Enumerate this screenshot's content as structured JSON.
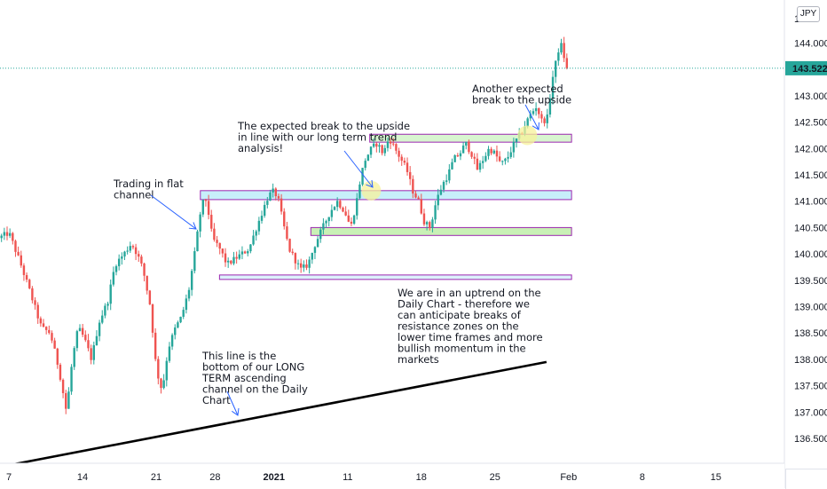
{
  "chart_data": {
    "type": "candlestick",
    "symbol_currency": "JPY",
    "last_price": "143.522",
    "y_ticks": [
      "136.500",
      "137.000",
      "137.500",
      "138.000",
      "138.500",
      "139.000",
      "139.500",
      "140.000",
      "140.500",
      "141.000",
      "141.500",
      "142.000",
      "142.500",
      "143.000",
      "144.000"
    ],
    "y_ticks_values": [
      136.5,
      137.0,
      137.5,
      138.0,
      138.5,
      139.0,
      139.5,
      140.0,
      140.5,
      141.0,
      141.5,
      142.0,
      142.5,
      143.0,
      144.0
    ],
    "ylim": [
      136.1,
      145.2
    ],
    "x_ticks": [
      {
        "label": "7",
        "t": 0.0
      },
      {
        "label": "14",
        "t": 5.0
      },
      {
        "label": "21",
        "t": 10.0
      },
      {
        "label": "28",
        "t": 14.0
      },
      {
        "label": "2021",
        "t": 18.0
      },
      {
        "label": "11",
        "t": 23.0
      },
      {
        "label": "18",
        "t": 28.0
      },
      {
        "label": "25",
        "t": 33.0
      },
      {
        "label": "Feb",
        "t": 38.0
      },
      {
        "label": "8",
        "t": 43.0
      },
      {
        "label": "15",
        "t": 48.0
      }
    ],
    "price_path": [
      [
        -0.5,
        140.3
      ],
      [
        0.2,
        140.4
      ],
      [
        0.6,
        140.1
      ],
      [
        1.0,
        139.8
      ],
      [
        1.6,
        139.3
      ],
      [
        2.4,
        138.6
      ],
      [
        3.0,
        138.5
      ],
      [
        3.6,
        137.8
      ],
      [
        4.1,
        137.0
      ],
      [
        4.5,
        138.0
      ],
      [
        4.9,
        138.6
      ],
      [
        5.3,
        138.4
      ],
      [
        5.8,
        138.0
      ],
      [
        6.3,
        138.7
      ],
      [
        6.9,
        139.1
      ],
      [
        7.4,
        139.8
      ],
      [
        8.0,
        140.0
      ],
      [
        8.5,
        140.2
      ],
      [
        8.9,
        140.0
      ],
      [
        9.3,
        139.7
      ],
      [
        9.8,
        139.0
      ],
      [
        10.2,
        137.8
      ],
      [
        10.6,
        137.4
      ],
      [
        11.0,
        138.2
      ],
      [
        11.5,
        138.6
      ],
      [
        11.9,
        138.8
      ],
      [
        12.4,
        139.3
      ],
      [
        12.8,
        140.0
      ],
      [
        13.2,
        140.8
      ],
      [
        13.5,
        141.1
      ],
      [
        13.8,
        140.7
      ],
      [
        14.0,
        140.3
      ],
      [
        14.5,
        140.1
      ],
      [
        15.0,
        139.8
      ],
      [
        15.5,
        139.9
      ],
      [
        16.0,
        140.0
      ],
      [
        16.5,
        140.1
      ],
      [
        17.0,
        140.5
      ],
      [
        17.4,
        140.8
      ],
      [
        17.8,
        141.1
      ],
      [
        18.2,
        141.2
      ],
      [
        18.5,
        141.0
      ],
      [
        18.8,
        140.6
      ],
      [
        19.2,
        140.1
      ],
      [
        19.6,
        139.9
      ],
      [
        20.0,
        139.7
      ],
      [
        20.5,
        139.8
      ],
      [
        21.0,
        140.2
      ],
      [
        21.5,
        140.5
      ],
      [
        22.0,
        140.8
      ],
      [
        22.5,
        141.0
      ],
      [
        23.0,
        140.8
      ],
      [
        23.4,
        140.5
      ],
      [
        23.8,
        141.0
      ],
      [
        24.1,
        141.5
      ],
      [
        24.4,
        141.8
      ],
      [
        24.8,
        142.0
      ],
      [
        25.2,
        142.1
      ],
      [
        25.6,
        141.9
      ],
      [
        26.0,
        142.2
      ],
      [
        26.4,
        142.0
      ],
      [
        26.8,
        141.8
      ],
      [
        27.2,
        141.6
      ],
      [
        27.6,
        141.2
      ],
      [
        28.0,
        141.0
      ],
      [
        28.4,
        140.6
      ],
      [
        28.8,
        140.5
      ],
      [
        29.2,
        141.0
      ],
      [
        29.6,
        141.3
      ],
      [
        30.0,
        141.5
      ],
      [
        30.4,
        141.8
      ],
      [
        30.8,
        141.9
      ],
      [
        31.2,
        142.1
      ],
      [
        31.6,
        141.9
      ],
      [
        32.0,
        141.6
      ],
      [
        32.4,
        141.8
      ],
      [
        32.8,
        142.0
      ],
      [
        33.2,
        141.9
      ],
      [
        33.6,
        141.7
      ],
      [
        34.0,
        141.8
      ],
      [
        34.5,
        142.1
      ],
      [
        35.0,
        142.3
      ],
      [
        35.5,
        142.6
      ],
      [
        36.0,
        142.8
      ],
      [
        36.4,
        142.5
      ],
      [
        36.8,
        142.6
      ],
      [
        37.0,
        143.2
      ],
      [
        37.3,
        143.6
      ],
      [
        37.6,
        144.0
      ],
      [
        37.8,
        143.9
      ],
      [
        38.0,
        143.5
      ]
    ],
    "trendline": {
      "start": [
        -0.8,
        135.95
      ],
      "end": [
        36.5,
        137.95
      ],
      "style": "solid",
      "color": "#000000"
    },
    "zones": [
      {
        "name": "resistance-zone-142.2",
        "t0": 24.5,
        "t1": 38.2,
        "y_low": 142.12,
        "y_high": 142.27,
        "fill": "#d8f5d0",
        "stroke": "#9c27b0"
      },
      {
        "name": "resistance-zone-141.1",
        "t0": 13.0,
        "t1": 38.2,
        "y_low": 141.03,
        "y_high": 141.2,
        "fill": "#c7effa",
        "stroke": "#9c27b0"
      },
      {
        "name": "support-zone-140.4",
        "t0": 20.5,
        "t1": 38.2,
        "y_low": 140.35,
        "y_high": 140.5,
        "fill": "#c9f0b6",
        "stroke": "#9c27b0"
      },
      {
        "name": "support-zone-139.5",
        "t0": 14.3,
        "t1": 38.2,
        "y_low": 139.52,
        "y_high": 139.6,
        "fill": "#dcf2fb",
        "stroke": "#9c27b0"
      }
    ],
    "highlights": [
      {
        "t": 24.6,
        "y": 141.2,
        "color": "#f7f29a"
      },
      {
        "t": 35.2,
        "y": 142.25,
        "color": "#f7f29a"
      }
    ],
    "annotations": [
      {
        "id": "flat-channel",
        "lines": [
          "Trading in flat",
          "channel"
        ]
      },
      {
        "id": "expected-break",
        "lines": [
          "The expected break to the upside",
          "in line with our long term trend",
          "analysis!"
        ]
      },
      {
        "id": "another-break",
        "lines": [
          "Another expected",
          "break to the upside"
        ]
      },
      {
        "id": "uptrend-note",
        "lines": [
          "We are in an uptrend on the",
          "Daily Chart - therefore we",
          "can anticipate breaks of",
          "resistance zones on the",
          "lower time frames and more",
          "bullish momentum in the",
          "markets"
        ]
      },
      {
        "id": "trendline-note",
        "lines": [
          "This line is the",
          "bottom of our LONG",
          "TERM ascending",
          "channel on the Daily",
          "Chart"
        ]
      }
    ],
    "colors": {
      "up": "#26a69a",
      "down": "#ef5350",
      "last_price_line": "#26a69a",
      "zone_border": "#9c27b0"
    }
  }
}
